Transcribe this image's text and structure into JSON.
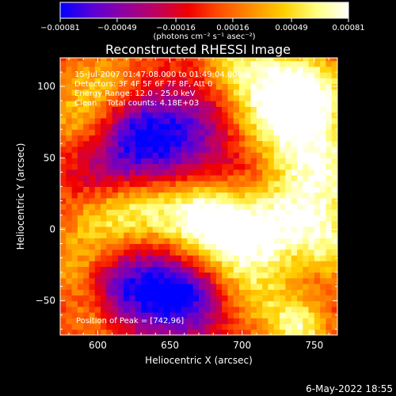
{
  "chart_data": {
    "type": "heatmap",
    "title": "Reconstructed RHESSI Image",
    "xlabel": "Heliocentric X (arcsec)",
    "ylabel": "Heliocentric Y (arcsec)",
    "xlim": [
      574,
      766
    ],
    "ylim": [
      -74,
      120
    ],
    "x_ticks": [
      600,
      650,
      700,
      750
    ],
    "y_ticks": [
      -50,
      0,
      50,
      100
    ],
    "x_tick_labels": [
      "600",
      "650",
      "700",
      "750"
    ],
    "y_tick_labels": [
      "−50",
      "0",
      "50",
      "100"
    ],
    "colorbar": {
      "range": [
        -0.00081,
        0.00081
      ],
      "tick_values": [
        -0.00081,
        -0.00049,
        -0.00016,
        0.00016,
        0.00049,
        0.00081
      ],
      "tick_labels": [
        "−0.00081",
        "−0.00049",
        "−0.00016",
        "0.00016",
        "0.00049",
        "0.00081"
      ],
      "unit_label": "(photons cm⁻² s⁻¹ asec⁻²)",
      "colormap": [
        "#0000ff",
        "#5a00d8",
        "#9000a0",
        "#c00060",
        "#f00000",
        "#ff5000",
        "#ff9000",
        "#ffd000",
        "#ffff80",
        "#ffffff"
      ]
    },
    "info_lines": [
      "15-Jul-2007 01:47:08.000 to 01:49:04.000",
      "Detectors: 3F 4F 5F 6F 7F 8F, Att 0",
      "Energy Range: 12.0 - 25.0 keV",
      "Clean    Total counts: 4.18E+03"
    ],
    "peak_label": "Position of Peak = [742,96]",
    "peak": [
      742,
      96
    ],
    "footer_date": "6-May-2022 18:55",
    "blobs": [
      {
        "x": 742,
        "y": 96,
        "v": 0.00081,
        "r": 20
      },
      {
        "x": 720,
        "y": 70,
        "v": 0.0006,
        "r": 26
      },
      {
        "x": 700,
        "y": 115,
        "v": 0.0005,
        "r": 18
      },
      {
        "x": 760,
        "y": 45,
        "v": 0.00055,
        "r": 22
      },
      {
        "x": 655,
        "y": 12,
        "v": 0.0006,
        "r": 22
      },
      {
        "x": 685,
        "y": 5,
        "v": 0.00068,
        "r": 20
      },
      {
        "x": 715,
        "y": -5,
        "v": 0.0005,
        "r": 22
      },
      {
        "x": 745,
        "y": 8,
        "v": 0.0005,
        "r": 20
      },
      {
        "x": 625,
        "y": 20,
        "v": 0.0005,
        "r": 18
      },
      {
        "x": 600,
        "y": 5,
        "v": 0.0004,
        "r": 18
      },
      {
        "x": 590,
        "y": 80,
        "v": 0.0004,
        "r": 20
      },
      {
        "x": 610,
        "y": 105,
        "v": 0.0003,
        "r": 18
      },
      {
        "x": 585,
        "y": -30,
        "v": 0.00035,
        "r": 16
      },
      {
        "x": 600,
        "y": -62,
        "v": 0.0004,
        "r": 14
      },
      {
        "x": 700,
        "y": -35,
        "v": 0.0003,
        "r": 18
      },
      {
        "x": 740,
        "y": -68,
        "v": 0.0006,
        "r": 14
      },
      {
        "x": 765,
        "y": -15,
        "v": 0.0004,
        "r": 14
      },
      {
        "x": 720,
        "y": -55,
        "v": 0.00025,
        "r": 16
      },
      {
        "x": 640,
        "y": 50,
        "v": -0.00068,
        "r": 24
      },
      {
        "x": 625,
        "y": 75,
        "v": -0.0004,
        "r": 18
      },
      {
        "x": 670,
        "y": 75,
        "v": -0.0004,
        "r": 20
      },
      {
        "x": 640,
        "y": -40,
        "v": -0.00068,
        "r": 22
      },
      {
        "x": 610,
        "y": -45,
        "v": -0.0004,
        "r": 18
      },
      {
        "x": 665,
        "y": -50,
        "v": -0.0005,
        "r": 18
      },
      {
        "x": 700,
        "y": 45,
        "v": -0.00035,
        "r": 18
      },
      {
        "x": 605,
        "y": 40,
        "v": -0.00035,
        "r": 18
      }
    ]
  }
}
